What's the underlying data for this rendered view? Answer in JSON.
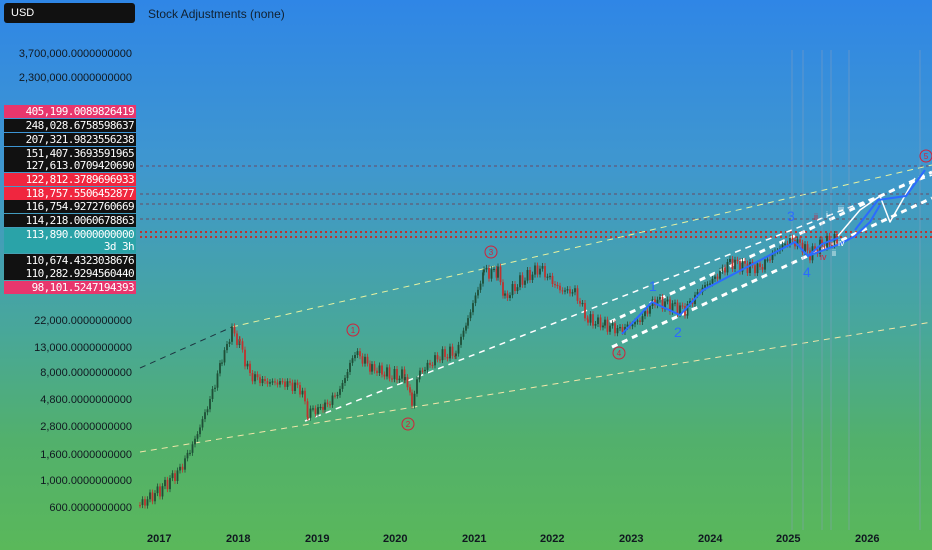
{
  "toolbar": {
    "currency": "USD",
    "adjustments": "Stock Adjustments (none)"
  },
  "price_axis": {
    "labels": [
      "3,700,000.0000000000",
      "2,300,000.0000000000",
      "22,000.0000000000",
      "13,000.0000000000",
      "8,000.0000000000",
      "4,800.0000000000",
      "2,800.0000000000",
      "1,600.0000000000",
      "1,000.0000000000",
      "600.0000000000"
    ]
  },
  "price_badges": [
    {
      "value": "405,199.0089826419",
      "color": "#e8366d"
    },
    {
      "value": "248,028.6758598637",
      "color": "#111111"
    },
    {
      "value": "207,321.9823556238",
      "color": "#111111"
    },
    {
      "value": "151,407.3693591965",
      "color": "#111111"
    },
    {
      "value": "127,613.0709420690",
      "color": "#111111"
    },
    {
      "value": "122,812.3789696933",
      "color": "#f0263f"
    },
    {
      "value": "118,757.5506452877",
      "color": "#f0263f"
    },
    {
      "value": "116,754.9272760669",
      "color": "#111111"
    },
    {
      "value": "114,218.0060678863",
      "color": "#111111"
    },
    {
      "value": "113,890.0000000000",
      "color": "#2aa3a8"
    },
    {
      "value": "3d 3h",
      "color": "#2aa3a8"
    },
    {
      "value": "110,674.4323038676",
      "color": "#111111"
    },
    {
      "value": "110,282.9294560440",
      "color": "#111111"
    },
    {
      "value": "98,101.5247194393",
      "color": "#e8366d"
    }
  ],
  "time_axis": {
    "years": [
      "2017",
      "2018",
      "2019",
      "2020",
      "2021",
      "2022",
      "2023",
      "2024",
      "2025",
      "2026"
    ]
  },
  "wave_labels": {
    "circled": [
      "1",
      "2",
      "3",
      "4",
      "5"
    ],
    "impulse": [
      "1",
      "2",
      "3",
      "4"
    ]
  },
  "colors": {
    "bull_candle": "#1e4e36",
    "bear_candle": "#c0322e",
    "wave_line": "#2b6bff",
    "channel_line": "#ffffff",
    "circle_marker": "#d3203a"
  }
}
